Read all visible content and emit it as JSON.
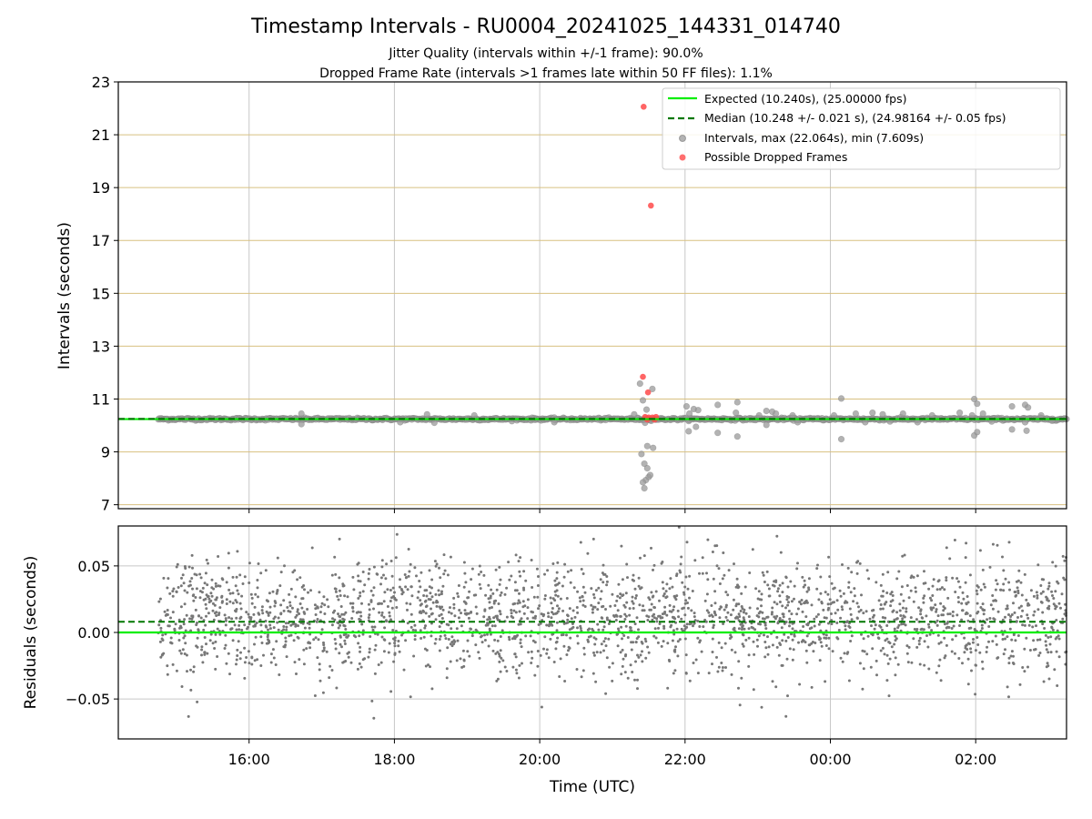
{
  "figure": {
    "title": "Timestamp Intervals - RU0004_20241025_144331_014740",
    "subtitle1": "Jitter Quality (intervals within +/-1 frame): 90.0%",
    "subtitle2": "Dropped Frame Rate (intervals >1 frames late within 50 FF files): 1.1%"
  },
  "chart_data": [
    {
      "type": "scatter",
      "panel": "top",
      "ylabel": "Intervals (seconds)",
      "xlim": [
        14.2,
        27.25
      ],
      "ylim": [
        6.85,
        23
      ],
      "yticks": [
        7,
        9,
        11,
        13,
        15,
        17,
        19,
        21,
        23
      ],
      "ytick_labels": [
        "7",
        "9",
        "11",
        "13",
        "15",
        "17",
        "19",
        "21",
        "23"
      ],
      "xticks": [
        16,
        18,
        20,
        22,
        24,
        26
      ],
      "grid": "x gray, y goldenrod",
      "legend_position": "top-right",
      "legend": [
        "Expected (10.240s), (25.00000 fps)",
        "Median (10.248 +/- 0.021 s), (24.98164 +/- 0.05 fps)",
        "Intervals, max (22.064s), min (7.609s)",
        "Possible Dropped Frames"
      ],
      "expected_line": 10.24,
      "median_line": 10.248,
      "x_range_hours": [
        14.75,
        27.25
      ],
      "colors": {
        "expected": "#00ee00",
        "median": "#007700",
        "intervals": "#999999",
        "dropped": "#ff4a4a"
      },
      "series": [
        {
          "name": "Intervals, max (22.064s), min (7.609s)",
          "baseline": 10.24,
          "outliers": [
            [
              21.38,
              11.58
            ],
            [
              21.42,
              10.95
            ],
            [
              21.47,
              10.6
            ],
            [
              21.55,
              11.38
            ],
            [
              21.45,
              10.1
            ],
            [
              21.4,
              8.92
            ],
            [
              21.44,
              8.55
            ],
            [
              21.48,
              8.38
            ],
            [
              21.46,
              7.93
            ],
            [
              21.42,
              7.85
            ],
            [
              21.5,
              8.05
            ],
            [
              21.52,
              8.12
            ],
            [
              21.44,
              7.62
            ],
            [
              21.48,
              9.22
            ],
            [
              21.56,
              9.15
            ],
            [
              21.3,
              10.42
            ],
            [
              22.02,
              10.72
            ],
            [
              22.06,
              10.45
            ],
            [
              22.12,
              10.62
            ],
            [
              22.18,
              10.58
            ],
            [
              22.05,
              9.78
            ],
            [
              22.15,
              9.95
            ],
            [
              22.45,
              10.78
            ],
            [
              22.45,
              9.72
            ],
            [
              22.72,
              10.88
            ],
            [
              22.72,
              9.58
            ],
            [
              22.7,
              10.48
            ],
            [
              23.02,
              10.38
            ],
            [
              23.12,
              10.55
            ],
            [
              23.2,
              10.52
            ],
            [
              23.25,
              10.45
            ],
            [
              23.12,
              10.02
            ],
            [
              23.48,
              10.38
            ],
            [
              23.55,
              10.12
            ],
            [
              24.15,
              11.02
            ],
            [
              24.15,
              9.48
            ],
            [
              24.05,
              10.38
            ],
            [
              24.35,
              10.45
            ],
            [
              24.48,
              10.12
            ],
            [
              24.58,
              10.48
            ],
            [
              24.72,
              10.42
            ],
            [
              24.82,
              10.15
            ],
            [
              25.0,
              10.45
            ],
            [
              25.2,
              10.12
            ],
            [
              25.4,
              10.38
            ],
            [
              25.78,
              10.48
            ],
            [
              25.95,
              10.38
            ],
            [
              25.98,
              11.0
            ],
            [
              26.02,
              10.82
            ],
            [
              25.98,
              9.62
            ],
            [
              26.02,
              9.75
            ],
            [
              26.1,
              10.45
            ],
            [
              26.22,
              10.15
            ],
            [
              26.5,
              10.72
            ],
            [
              26.5,
              9.85
            ],
            [
              26.68,
              10.78
            ],
            [
              26.7,
              9.8
            ],
            [
              26.72,
              10.68
            ],
            [
              26.68,
              10.12
            ],
            [
              26.9,
              10.38
            ],
            [
              27.05,
              10.18
            ],
            [
              16.72,
              10.45
            ],
            [
              16.72,
              10.05
            ],
            [
              18.08,
              10.12
            ],
            [
              18.45,
              10.42
            ],
            [
              18.55,
              10.1
            ],
            [
              19.1,
              10.38
            ],
            [
              20.2,
              10.12
            ]
          ]
        },
        {
          "name": "Possible Dropped Frames",
          "points": [
            [
              21.43,
              22.06
            ],
            [
              21.53,
              18.32
            ],
            [
              21.42,
              11.84
            ],
            [
              21.49,
              11.25
            ],
            [
              21.45,
              10.32
            ],
            [
              21.5,
              10.3
            ],
            [
              21.55,
              10.3
            ],
            [
              21.6,
              10.32
            ],
            [
              21.48,
              10.22
            ],
            [
              21.58,
              10.22
            ]
          ]
        }
      ]
    },
    {
      "type": "scatter",
      "panel": "bottom",
      "ylabel": "Residuals (seconds)",
      "xlabel": "Time (UTC)",
      "xlim": [
        14.2,
        27.25
      ],
      "ylim": [
        -0.08,
        0.08
      ],
      "yticks": [
        -0.05,
        0.0,
        0.05
      ],
      "ytick_labels": [
        "−0.05",
        "0.00",
        "0.05"
      ],
      "xticks": [
        16,
        18,
        20,
        22,
        24,
        26
      ],
      "xtick_labels": [
        "16:00",
        "18:00",
        "20:00",
        "22:00",
        "00:00",
        "02:00"
      ],
      "expected_line": 0.0,
      "median_line": 0.008,
      "residual_center": 0.01,
      "residual_spread": 0.022,
      "n_points": 2500,
      "colors": {
        "points": "#777777",
        "expected": "#00ee00",
        "median": "#007700"
      },
      "series": [
        {
          "name": "Residuals",
          "distribution": "gaussian around ~0.01 s, sd ~0.022 s, clipped to ±0.08 s"
        }
      ]
    }
  ]
}
